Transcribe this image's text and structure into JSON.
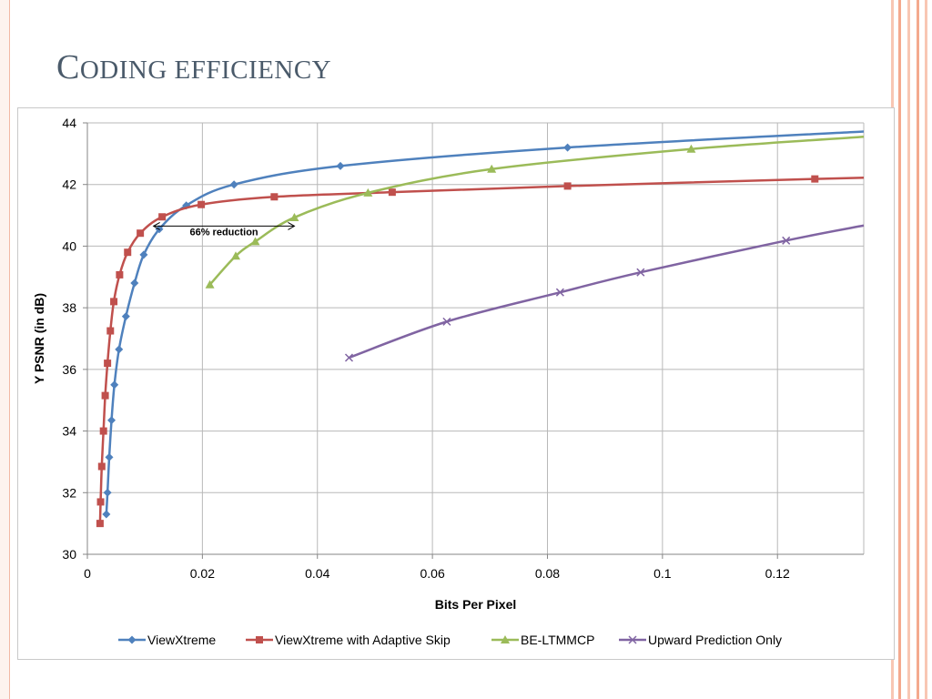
{
  "slide": {
    "title": "Coding efficiency",
    "title_first": "C",
    "title_rest": "ODING EFFICIENCY"
  },
  "theme": {
    "title_color": "#4a5a6a",
    "stripe_colors": [
      "#f8c7b4",
      "#f4a98e",
      "#f8c7b4",
      "#f4a98e",
      "#f8c7b4"
    ]
  },
  "chart_data": {
    "type": "line",
    "xlabel": "Bits Per Pixel",
    "ylabel": "Y PSNR (in dB)",
    "xlim": [
      0,
      0.135
    ],
    "ylim": [
      30,
      44
    ],
    "xticks": [
      0,
      0.02,
      0.04,
      0.06,
      0.08,
      0.1,
      0.12
    ],
    "xtick_labels": [
      "0",
      "0.02",
      "0.04",
      "0.06",
      "0.08",
      "0.1",
      "0.12"
    ],
    "yticks": [
      30,
      32,
      34,
      36,
      38,
      40,
      42,
      44
    ],
    "ytick_labels": [
      "30",
      "32",
      "34",
      "36",
      "38",
      "40",
      "42",
      "44"
    ],
    "grid": true,
    "legend_position": "bottom",
    "annotation": {
      "text": "66% reduction",
      "x_start": 0.0115,
      "x_end": 0.036,
      "y": 40.65,
      "label_x": 0.0178,
      "label_y": 40.35
    },
    "series": [
      {
        "name": "ViewXtreme",
        "color": "#4f81bd",
        "marker": "diamond",
        "line_end": [
          0.135,
          43.72
        ],
        "points": [
          [
            0.0033,
            31.3
          ],
          [
            0.0035,
            32.0
          ],
          [
            0.0038,
            33.15
          ],
          [
            0.0042,
            34.35
          ],
          [
            0.0047,
            35.5
          ],
          [
            0.0055,
            36.65
          ],
          [
            0.0067,
            37.72
          ],
          [
            0.0082,
            38.8
          ],
          [
            0.0098,
            39.72
          ],
          [
            0.0125,
            40.55
          ],
          [
            0.0172,
            41.32
          ],
          [
            0.0255,
            42.0
          ],
          [
            0.044,
            42.6
          ],
          [
            0.0835,
            43.2
          ]
        ]
      },
      {
        "name": "ViewXtreme with Adaptive Skip",
        "color": "#c0504d",
        "marker": "square",
        "line_end": [
          0.135,
          42.22
        ],
        "points": [
          [
            0.0022,
            31.0
          ],
          [
            0.0023,
            31.7
          ],
          [
            0.0025,
            32.85
          ],
          [
            0.0028,
            34.0
          ],
          [
            0.0031,
            35.15
          ],
          [
            0.0035,
            36.2
          ],
          [
            0.004,
            37.25
          ],
          [
            0.0046,
            38.2
          ],
          [
            0.0056,
            39.07
          ],
          [
            0.007,
            39.8
          ],
          [
            0.0092,
            40.42
          ],
          [
            0.013,
            40.95
          ],
          [
            0.0198,
            41.35
          ],
          [
            0.0325,
            41.6
          ],
          [
            0.053,
            41.75
          ],
          [
            0.0835,
            41.95
          ],
          [
            0.1265,
            42.18
          ]
        ]
      },
      {
        "name": "BE-LTMMCP",
        "color": "#9bbb59",
        "marker": "triangle",
        "line_end": [
          0.135,
          43.55
        ],
        "points": [
          [
            0.0213,
            38.75
          ],
          [
            0.0258,
            39.68
          ],
          [
            0.0292,
            40.15
          ],
          [
            0.036,
            40.93
          ],
          [
            0.0488,
            41.73
          ],
          [
            0.0703,
            42.5
          ],
          [
            0.105,
            43.15
          ]
        ]
      },
      {
        "name": "Upward Prediction Only",
        "color": "#8064a2",
        "marker": "x",
        "line_end": [
          0.135,
          40.67
        ],
        "points": [
          [
            0.0455,
            36.38
          ],
          [
            0.0625,
            37.55
          ],
          [
            0.0822,
            38.5
          ],
          [
            0.0962,
            39.15
          ],
          [
            0.1215,
            40.18
          ]
        ]
      }
    ]
  }
}
